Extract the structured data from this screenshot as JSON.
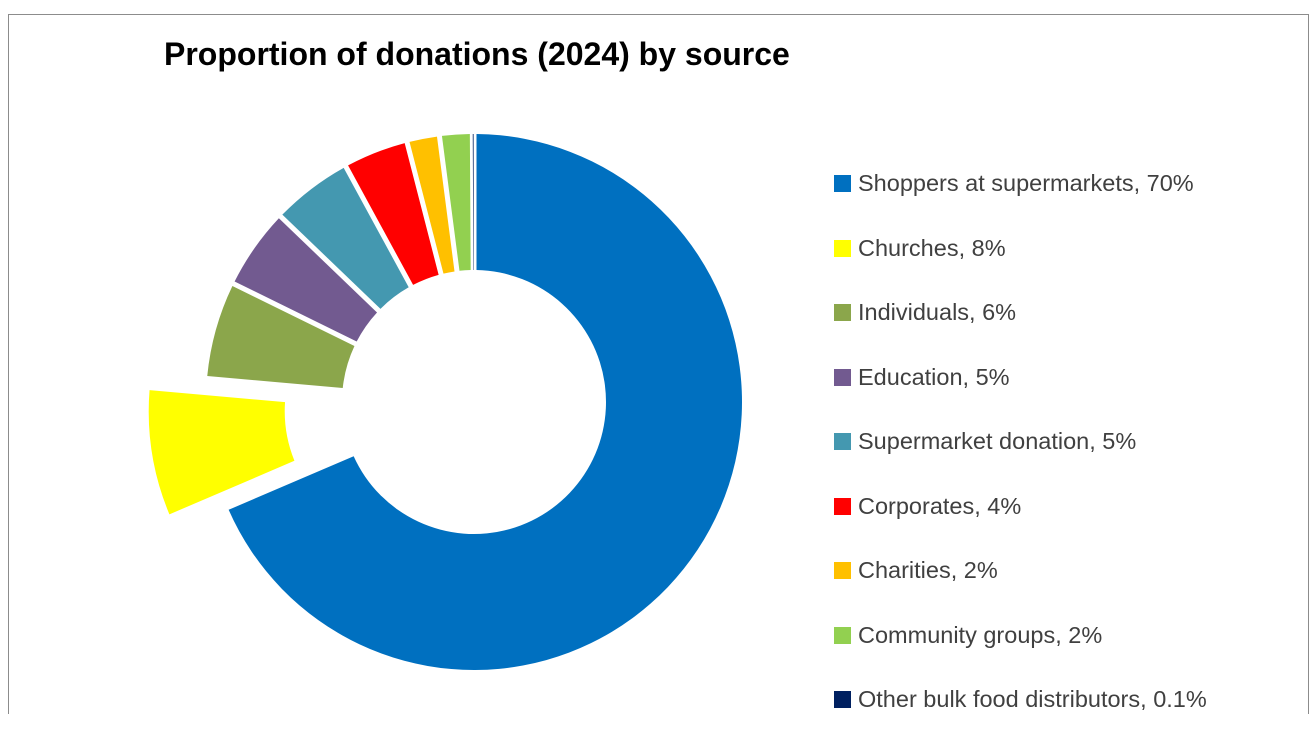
{
  "chart_data": {
    "type": "pie",
    "variant": "donut",
    "title": "Proportion of donations (2024) by source",
    "legend_position": "right",
    "series": [
      {
        "slices": [
          {
            "label": "Shoppers at supermarkets, 70%",
            "category": "Shoppers at supermarkets",
            "value": 70,
            "color": "#0070C0"
          },
          {
            "label": "Churches, 8%",
            "category": "Churches",
            "value": 8,
            "color": "#FFFF00",
            "exploded": true
          },
          {
            "label": "Individuals, 6%",
            "category": "Individuals",
            "value": 6,
            "color": "#8BA64B"
          },
          {
            "label": "Education, 5%",
            "category": "Education",
            "value": 5,
            "color": "#725A90"
          },
          {
            "label": "Supermarket donation, 5%",
            "category": "Supermarket donation",
            "value": 5,
            "color": "#4498B0"
          },
          {
            "label": "Corporates, 4%",
            "category": "Corporates",
            "value": 4,
            "color": "#FF0000"
          },
          {
            "label": "Charities, 2%",
            "category": "Charities",
            "value": 2,
            "color": "#FFC000"
          },
          {
            "label": "Community groups, 2%",
            "category": "Community groups",
            "value": 2,
            "color": "#92D050"
          },
          {
            "label": "Other bulk food distributors, 0.1%",
            "category": "Other bulk food distributors",
            "value": 0.1,
            "color": "#002060"
          }
        ]
      }
    ]
  }
}
